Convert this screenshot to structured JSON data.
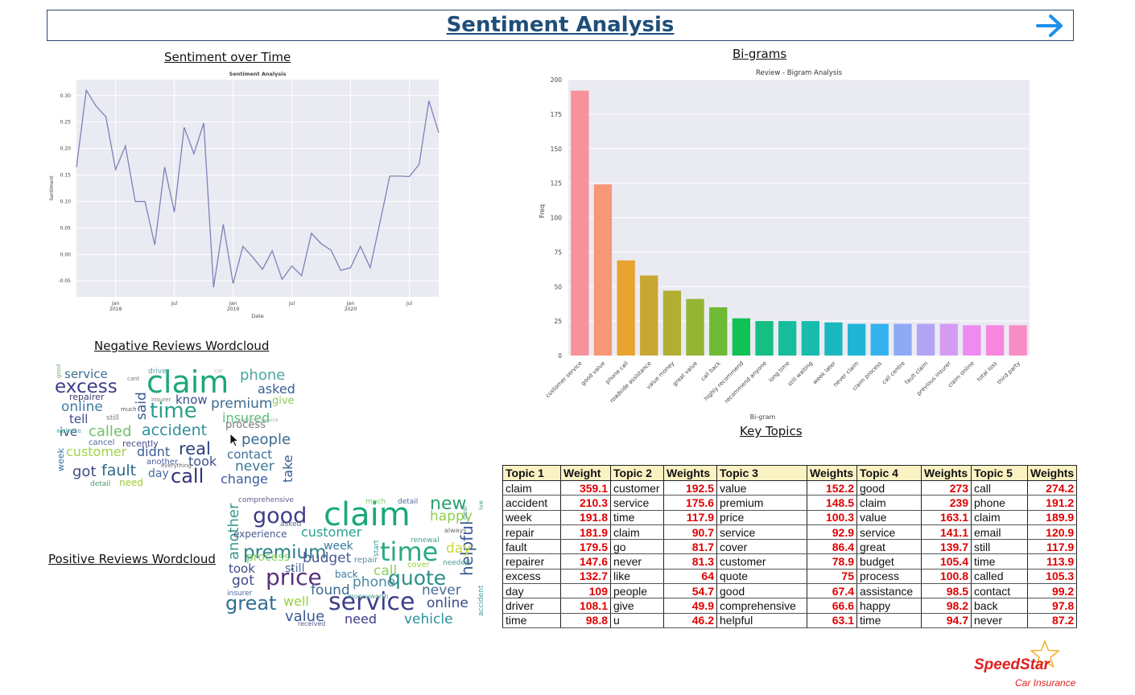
{
  "header": {
    "title": "Sentiment Analysis",
    "arrow_icon": "arrow-right-icon",
    "accent": "#1f4e79"
  },
  "sections": {
    "sentiment_over_time": "Sentiment over Time",
    "bigrams": "Bi-grams",
    "negative_wordcloud": "Negative Reviews Wordcloud",
    "positive_wordcloud": "Positive Reviews Wordcloud",
    "key_topics": "Key Topics"
  },
  "chart_data": [
    {
      "type": "line",
      "title": "Sentiment Analysis",
      "xlabel": "Date",
      "ylabel": "Sentiment",
      "x_start": "2017-09",
      "x_ticks": [
        {
          "label": "Jan\n2018",
          "month": 4
        },
        {
          "label": "Jul",
          "month": 10
        },
        {
          "label": "Jan\n2019",
          "month": 16
        },
        {
          "label": "Jul",
          "month": 22
        },
        {
          "label": "Jan\n2020",
          "month": 28
        },
        {
          "label": "Jul",
          "month": 34
        }
      ],
      "y_ticks": [
        -0.05,
        0.0,
        0.05,
        0.1,
        0.15,
        0.2,
        0.25,
        0.3
      ],
      "ylim": [
        -0.08,
        0.33
      ],
      "grid": true,
      "color": "#7b83b8",
      "values": [
        0.165,
        0.31,
        0.28,
        0.26,
        0.16,
        0.205,
        0.1,
        0.1,
        0.018,
        0.165,
        0.08,
        0.24,
        0.19,
        0.248,
        -0.062,
        0.057,
        -0.055,
        0.015,
        -0.005,
        -0.028,
        0.007,
        -0.047,
        -0.022,
        -0.04,
        0.04,
        0.02,
        0.008,
        -0.03,
        -0.025,
        0.015,
        -0.025,
        0.06,
        0.148,
        0.148,
        0.147,
        0.17,
        0.29,
        0.23
      ]
    },
    {
      "type": "bar",
      "title": "Review - Bigram Analysis",
      "xlabel": "Bi-gram",
      "ylabel": "Freq",
      "ylim": [
        0,
        200
      ],
      "y_ticks": [
        0,
        25,
        50,
        75,
        100,
        125,
        150,
        175,
        200
      ],
      "categories": [
        "customer service",
        "good value",
        "phone call",
        "roadside assistance",
        "value money",
        "great value",
        "call back",
        "highly recommend",
        "recommend anyone",
        "long time",
        "still waiting",
        "week later",
        "never claim",
        "claim process",
        "call centre",
        "fault claim",
        "previous insurer",
        "claim online",
        "total loss",
        "third party"
      ],
      "values": [
        192,
        124,
        69,
        58,
        47,
        41,
        35,
        27,
        25,
        25,
        25,
        24,
        23,
        23,
        23,
        23,
        23,
        22,
        22,
        22
      ],
      "colors": [
        "#f7919c",
        "#f89678",
        "#e8a42e",
        "#c8a731",
        "#b2ad33",
        "#94b433",
        "#6fba34",
        "#10c255",
        "#15be82",
        "#17bc9c",
        "#19bbae",
        "#1bb9bf",
        "#1fb6d6",
        "#35b1ee",
        "#8eaaf5",
        "#b2a3f5",
        "#d39cf2",
        "#ee8bf1",
        "#f786e0",
        "#f98cc5"
      ]
    }
  ],
  "negative_words": [
    {
      "t": "claim",
      "c": "#1ca878"
    },
    {
      "t": "excess",
      "c": "#3f3d8a"
    },
    {
      "t": "time",
      "c": "#2a9f8a"
    },
    {
      "t": "phone",
      "c": "#4aa6a0"
    },
    {
      "t": "service",
      "c": "#3b6e8f"
    },
    {
      "t": "asked",
      "c": "#3b5f9a"
    },
    {
      "t": "premium",
      "c": "#3b6b90"
    },
    {
      "t": "know",
      "c": "#3e4b8c"
    },
    {
      "t": "give",
      "c": "#8cca56"
    },
    {
      "t": "online",
      "c": "#3c7ba0"
    },
    {
      "t": "insured",
      "c": "#58c07a"
    },
    {
      "t": "tell",
      "c": "#3b4a8a"
    },
    {
      "t": "said",
      "c": "#3a5b94"
    },
    {
      "t": "called",
      "c": "#6fc26a"
    },
    {
      "t": "accident",
      "c": "#2f8f9a"
    },
    {
      "t": "process",
      "c": "#7a7a7a"
    },
    {
      "t": "ive",
      "c": "#3d4f8e"
    },
    {
      "t": "people",
      "c": "#3a6b92"
    },
    {
      "t": "real",
      "c": "#2b3f7e"
    },
    {
      "t": "customer",
      "c": "#9ed44a"
    },
    {
      "t": "didnt",
      "c": "#3b5a95"
    },
    {
      "t": "contact",
      "c": "#3f6e9a"
    },
    {
      "t": "took",
      "c": "#3e4f8c"
    },
    {
      "t": "never",
      "c": "#3a7895"
    },
    {
      "t": "got",
      "c": "#3f4a88"
    },
    {
      "t": "fault",
      "c": "#2b6a8a"
    },
    {
      "t": "day",
      "c": "#4a6aa0"
    },
    {
      "t": "call",
      "c": "#32307a"
    },
    {
      "t": "change",
      "c": "#3c5c9a"
    },
    {
      "t": "need",
      "c": "#a0cc3a"
    },
    {
      "t": "take",
      "c": "#3a5c92"
    },
    {
      "t": "week",
      "c": "#3a6fa0"
    },
    {
      "t": "repairer",
      "c": "#3c3c70"
    },
    {
      "t": "cancel",
      "c": "#4a6aa0"
    },
    {
      "t": "recently",
      "c": "#4a4a8a"
    },
    {
      "t": "driver",
      "c": "#5aa0b0"
    },
    {
      "t": "website",
      "c": "#5ab0a0"
    },
    {
      "t": "another",
      "c": "#4a5aa0"
    },
    {
      "t": "detail",
      "c": "#4a9a70"
    },
    {
      "t": "still",
      "c": "#7a7a7a"
    },
    {
      "t": "good",
      "c": "#6ab070"
    },
    {
      "t": "much",
      "c": "#555"
    },
    {
      "t": "cant",
      "c": "#777"
    },
    {
      "t": "insurer",
      "c": "#777"
    },
    {
      "t": "everything",
      "c": "#666"
    },
    {
      "t": "customer service",
      "c": "#aaa"
    },
    {
      "t": "car",
      "c": "#bbb"
    }
  ],
  "positive_words": [
    {
      "t": "claim",
      "c": "#1ca878"
    },
    {
      "t": "good",
      "c": "#3f3d8a"
    },
    {
      "t": "time",
      "c": "#2aaa84"
    },
    {
      "t": "price",
      "c": "#5a2f7a"
    },
    {
      "t": "premium",
      "c": "#2a7f8a"
    },
    {
      "t": "service",
      "c": "#3c3f8a"
    },
    {
      "t": "great",
      "c": "#2f6f90"
    },
    {
      "t": "quote",
      "c": "#2a8f8a"
    },
    {
      "t": "new",
      "c": "#2aa070"
    },
    {
      "t": "happy",
      "c": "#8cd04a"
    },
    {
      "t": "customer",
      "c": "#2aa090"
    },
    {
      "t": "budget",
      "c": "#4a5a90"
    },
    {
      "t": "process",
      "c": "#8ad060"
    },
    {
      "t": "week",
      "c": "#3a7a9a"
    },
    {
      "t": "call",
      "c": "#8ad060"
    },
    {
      "t": "phone",
      "c": "#4a8aa0"
    },
    {
      "t": "found",
      "c": "#3a6a90"
    },
    {
      "t": "well",
      "c": "#9ad040"
    },
    {
      "t": "online",
      "c": "#3a4a8a"
    },
    {
      "t": "never",
      "c": "#4a6a9a"
    },
    {
      "t": "value",
      "c": "#3b5a95"
    },
    {
      "t": "need",
      "c": "#3f3d8a"
    },
    {
      "t": "vehicle",
      "c": "#2a8f9a"
    },
    {
      "t": "helpful",
      "c": "#3a5a90"
    },
    {
      "t": "another",
      "c": "#3a9a90"
    },
    {
      "t": "experience",
      "c": "#4a5a90"
    },
    {
      "t": "day",
      "c": "#c8d83a"
    },
    {
      "t": "got",
      "c": "#3f4a88"
    },
    {
      "t": "took",
      "c": "#3f4a88"
    },
    {
      "t": "still",
      "c": "#4a6aa0"
    },
    {
      "t": "back",
      "c": "#3a7aa0"
    },
    {
      "t": "repair",
      "c": "#5a8aa0"
    },
    {
      "t": "cover",
      "c": "#9ad040"
    },
    {
      "t": "comprehensive",
      "c": "#6a5a8a"
    },
    {
      "t": "asked",
      "c": "#5a6a8a"
    },
    {
      "t": "renewal",
      "c": "#4aa090"
    },
    {
      "t": "needed",
      "c": "#4a9a90"
    },
    {
      "t": "always",
      "c": "#6a6a6a"
    },
    {
      "t": "much",
      "c": "#7ad060"
    },
    {
      "t": "detail",
      "c": "#4a6aa0"
    },
    {
      "t": "insurer",
      "c": "#4a6aa0"
    },
    {
      "t": "received",
      "c": "#5a5a8a"
    },
    {
      "t": "moneyworth",
      "c": "#4aa090"
    },
    {
      "t": "accident",
      "c": "#3aa0a0"
    },
    {
      "t": "start",
      "c": "#3aa0a0"
    },
    {
      "t": "ive",
      "c": "#4aa090"
    },
    {
      "t": "deal",
      "c": "#4aa090"
    }
  ],
  "key_topics": {
    "headers": [
      "Topic 1",
      "Weight",
      "Topic 2",
      "Weights",
      "Topic 3",
      "Weights",
      "Topic 4",
      "Weights",
      "Topic 5",
      "Weights"
    ],
    "rows": [
      [
        "claim",
        "359.1",
        "customer",
        "192.5",
        "value",
        "152.2",
        "good",
        "273",
        "call",
        "274.2"
      ],
      [
        "accident",
        "210.3",
        "service",
        "175.6",
        "premium",
        "148.5",
        "claim",
        "239",
        "phone",
        "191.2"
      ],
      [
        "week",
        "191.8",
        "time",
        "117.9",
        "price",
        "100.3",
        "value",
        "163.1",
        "claim",
        "189.9"
      ],
      [
        "repair",
        "181.9",
        "claim",
        "90.7",
        "service",
        "92.9",
        "service",
        "141.1",
        "email",
        "120.9"
      ],
      [
        "fault",
        "179.5",
        "go",
        "81.7",
        "cover",
        "86.4",
        "great",
        "139.7",
        "still",
        "117.9"
      ],
      [
        "repairer",
        "147.6",
        "never",
        "81.3",
        "customer",
        "78.9",
        "budget",
        "105.4",
        "time",
        "113.9"
      ],
      [
        "excess",
        "132.7",
        "like",
        "64",
        "quote",
        "75",
        "process",
        "100.8",
        "called",
        "105.3"
      ],
      [
        "day",
        "109",
        "people",
        "54.7",
        "good",
        "67.4",
        "assistance",
        "98.5",
        "contact",
        "99.2"
      ],
      [
        "driver",
        "108.1",
        "give",
        "49.9",
        "comprehensive",
        "66.6",
        "happy",
        "98.2",
        "back",
        "97.8"
      ],
      [
        "time",
        "98.8",
        "u",
        "46.2",
        "helpful",
        "63.1",
        "time",
        "94.7",
        "never",
        "87.2"
      ]
    ]
  },
  "logo": {
    "brand": "SpeedStar",
    "sub": "Car Insurance",
    "color": "#e02020",
    "icon": "star-icon"
  }
}
